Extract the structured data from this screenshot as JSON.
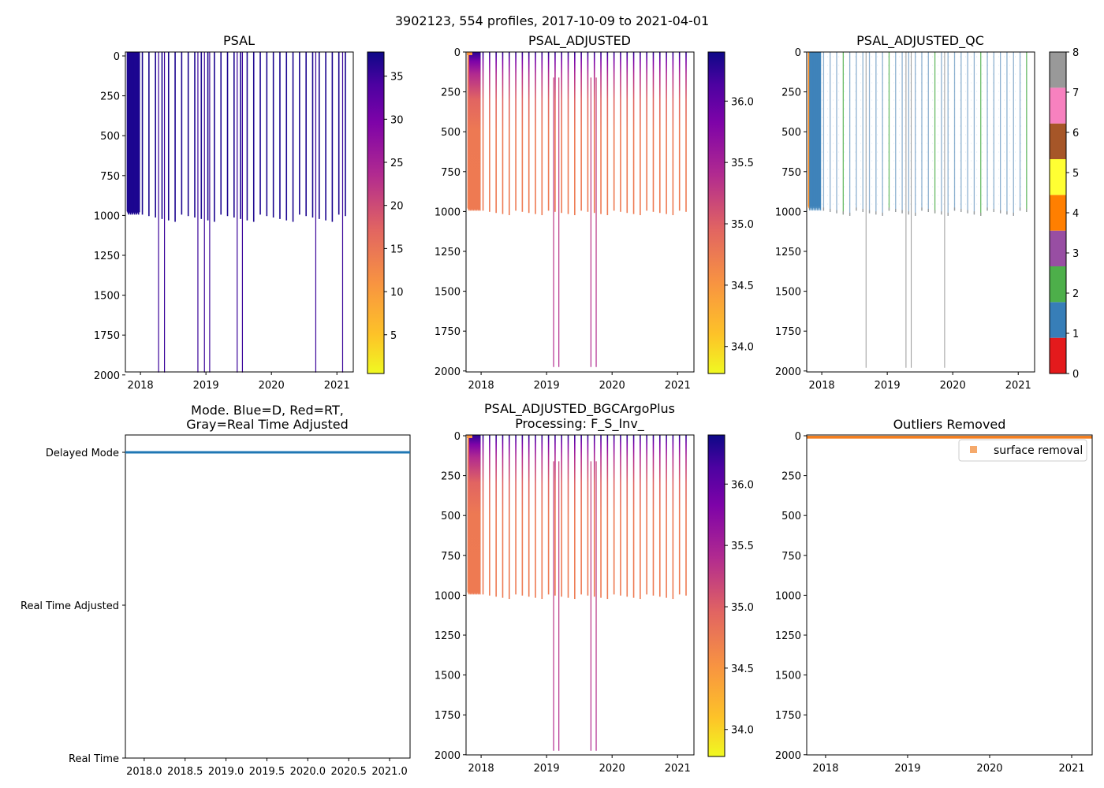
{
  "suptitle": "3902123, 554 profiles, 2017-10-09 to 2021-04-01",
  "chart_data": [
    {
      "type": "heatmap",
      "title": "PSAL",
      "xlim": [
        2017.77,
        2021.25
      ],
      "ylim": [
        2010,
        0
      ],
      "yticks": [
        "0",
        "250",
        "500",
        "750",
        "1000",
        "1250",
        "1500",
        "1750",
        "2000"
      ],
      "xticks": [
        "2018",
        "2019",
        "2020",
        "2021"
      ],
      "colormap": "plasma_r",
      "colorbar": {
        "range": [
          0.5,
          37.8
        ],
        "ticks": [
          "5",
          "10",
          "15",
          "20",
          "25",
          "30",
          "35"
        ]
      }
    },
    {
      "type": "heatmap",
      "title": "PSAL_ADJUSTED",
      "xlim": [
        2017.77,
        2021.25
      ],
      "ylim": [
        2010,
        0
      ],
      "yticks": [
        "0",
        "250",
        "500",
        "750",
        "1000",
        "1250",
        "1500",
        "1750",
        "2000"
      ],
      "xticks": [
        "2018",
        "2019",
        "2020",
        "2021"
      ],
      "colormap": "plasma_r",
      "colorbar": {
        "range": [
          33.78,
          36.4
        ],
        "ticks": [
          "34.0",
          "34.5",
          "35.0",
          "35.5",
          "36.0"
        ]
      }
    },
    {
      "type": "heatmap",
      "title": "PSAL_ADJUSTED_QC",
      "xlim": [
        2017.77,
        2021.25
      ],
      "ylim": [
        2010,
        0
      ],
      "yticks": [
        "0",
        "250",
        "500",
        "750",
        "1000",
        "1250",
        "1500",
        "1750",
        "2000"
      ],
      "xticks": [
        "2018",
        "2019",
        "2020",
        "2021"
      ],
      "colorbar": {
        "type": "categorical",
        "range": [
          0,
          8
        ],
        "ticks": [
          "0",
          "1",
          "2",
          "3",
          "4",
          "5",
          "6",
          "7",
          "8"
        ],
        "colors": [
          "#e41a1c",
          "#377eb8",
          "#4daf4a",
          "#984ea3",
          "#ff7f00",
          "#ffff33",
          "#a65628",
          "#f781bf",
          "#999999"
        ]
      }
    },
    {
      "type": "line",
      "title": "Mode. Blue=D, Red=RT,",
      "title2": "Gray=Real Time Adjusted",
      "xlim": [
        2017.77,
        2021.25
      ],
      "xticks": [
        "2018.0",
        "2018.5",
        "2019.0",
        "2019.5",
        "2020.0",
        "2020.5",
        "2021.0"
      ],
      "ycategories": [
        "Delayed Mode",
        "Real Time Adjusted",
        "Real Time"
      ],
      "series": [
        {
          "name": "mode",
          "x": [
            2017.77,
            2021.25
          ],
          "y": [
            "Delayed Mode",
            "Delayed Mode"
          ],
          "color": "#1f77b4"
        }
      ]
    },
    {
      "type": "heatmap",
      "title": "PSAL_ADJUSTED_BGCArgoPlus",
      "title2": "Processing: F_S_Inv_",
      "xlim": [
        2017.77,
        2021.25
      ],
      "ylim": [
        2010,
        0
      ],
      "yticks": [
        "0",
        "250",
        "500",
        "750",
        "1000",
        "1250",
        "1500",
        "1750",
        "2000"
      ],
      "xticks": [
        "2018",
        "2019",
        "2020",
        "2021"
      ],
      "colormap": "plasma_r",
      "colorbar": {
        "range": [
          33.78,
          36.4
        ],
        "ticks": [
          "34.0",
          "34.5",
          "35.0",
          "35.5",
          "36.0"
        ]
      }
    },
    {
      "type": "scatter",
      "title": "Outliers Removed",
      "xlim": [
        2017.77,
        2021.25
      ],
      "ylim": [
        2010,
        0
      ],
      "yticks": [
        "0",
        "250",
        "500",
        "750",
        "1000",
        "1250",
        "1500",
        "1750",
        "2000"
      ],
      "xticks": [
        "2018",
        "2019",
        "2020",
        "2021"
      ],
      "legend": {
        "position": "top-right",
        "label": "surface removal",
        "color": "#f5a96b"
      },
      "series": [
        {
          "name": "surface removal",
          "depth_range": [
            0,
            18
          ],
          "color": "#f47f20"
        }
      ]
    }
  ]
}
